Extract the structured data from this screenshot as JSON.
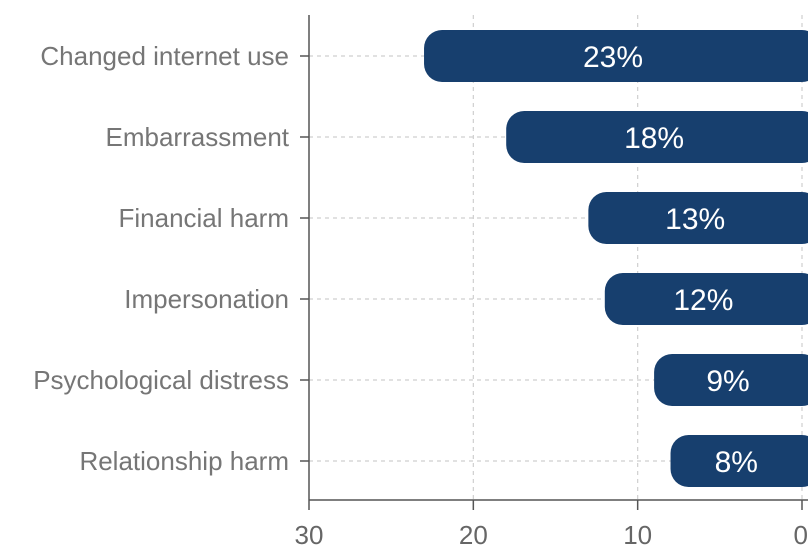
{
  "chart_data": {
    "type": "bar",
    "orientation": "horizontal",
    "x_reversed": true,
    "categories": [
      "Changed internet use",
      "Embarrassment",
      "Financial harm",
      "Impersonation",
      "Psychological distress",
      "Relationship harm"
    ],
    "values": [
      23,
      18,
      13,
      12,
      9,
      8
    ],
    "data_labels": [
      "23%",
      "18%",
      "13%",
      "12%",
      "9%",
      "8%"
    ],
    "xlim": [
      30,
      0
    ],
    "x_ticks": [
      30,
      20,
      10,
      0
    ],
    "x_tick_labels": [
      "30",
      "20",
      "10",
      "0"
    ],
    "title": "",
    "xlabel": "",
    "ylabel": "",
    "grid": true,
    "legend": "none",
    "colors": {
      "bar": "#173f6e",
      "data_label": "#ffffff",
      "category_label": "#767676",
      "tick_label": "#666666",
      "axis": "#555555",
      "grid": "#cfcfcf"
    }
  }
}
